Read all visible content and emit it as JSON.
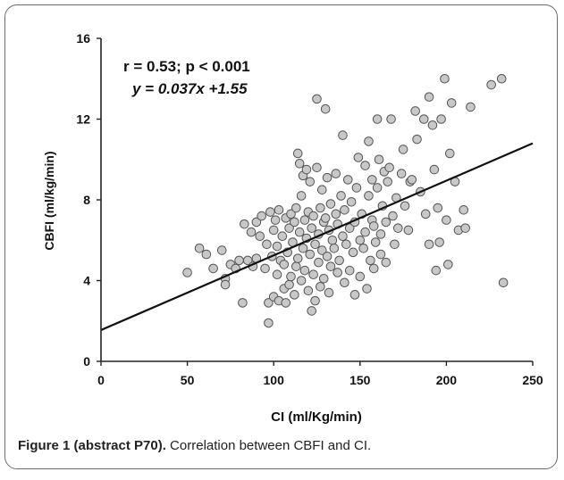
{
  "chart_data": {
    "type": "scatter",
    "title": "",
    "xlabel": "CI (ml/Kg/min)",
    "ylabel": "CBFI (ml/kg/min)",
    "xlim": [
      0,
      250
    ],
    "ylim": [
      0,
      16
    ],
    "xticks": [
      "0",
      "50",
      "100",
      "150",
      "200",
      "250"
    ],
    "yticks": [
      "0",
      "4",
      "8",
      "12",
      "16"
    ],
    "grid": false,
    "annotations": {
      "stats": "r = 0.53;  p < 0.001",
      "equation": "y = 0.037x +1.55"
    },
    "regression_line": {
      "slope": 0.037,
      "intercept": 1.55
    },
    "colors": {
      "point_fill": "#c8c8c8",
      "point_stroke": "#555555",
      "line": "#111111"
    },
    "points": [
      [
        50,
        4.4
      ],
      [
        57,
        5.6
      ],
      [
        61,
        5.3
      ],
      [
        65,
        4.6
      ],
      [
        70,
        5.5
      ],
      [
        72,
        4.1
      ],
      [
        72,
        3.8
      ],
      [
        75,
        4.8
      ],
      [
        78,
        4.6
      ],
      [
        80,
        5.0
      ],
      [
        82,
        2.9
      ],
      [
        83,
        6.8
      ],
      [
        85,
        5.0
      ],
      [
        87,
        6.4
      ],
      [
        88,
        4.7
      ],
      [
        90,
        5.1
      ],
      [
        90,
        6.9
      ],
      [
        92,
        6.2
      ],
      [
        93,
        7.2
      ],
      [
        95,
        4.6
      ],
      [
        96,
        5.8
      ],
      [
        97,
        2.9
      ],
      [
        97,
        1.9
      ],
      [
        98,
        7.4
      ],
      [
        99,
        5.2
      ],
      [
        100,
        3.2
      ],
      [
        100,
        6.5
      ],
      [
        101,
        7.0
      ],
      [
        102,
        4.3
      ],
      [
        102,
        5.7
      ],
      [
        103,
        3.0
      ],
      [
        103,
        7.5
      ],
      [
        104,
        5.0
      ],
      [
        105,
        6.2
      ],
      [
        106,
        3.6
      ],
      [
        106,
        4.8
      ],
      [
        107,
        2.9
      ],
      [
        107,
        7.1
      ],
      [
        108,
        5.4
      ],
      [
        109,
        3.8
      ],
      [
        109,
        6.6
      ],
      [
        110,
        4.2
      ],
      [
        110,
        7.3
      ],
      [
        111,
        5.9
      ],
      [
        112,
        3.3
      ],
      [
        112,
        6.9
      ],
      [
        113,
        4.7
      ],
      [
        113,
        7.6
      ],
      [
        114,
        5.1
      ],
      [
        114,
        10.3
      ],
      [
        115,
        9.8
      ],
      [
        115,
        6.4
      ],
      [
        116,
        4.0
      ],
      [
        116,
        8.2
      ],
      [
        117,
        9.2
      ],
      [
        117,
        5.6
      ],
      [
        118,
        7.0
      ],
      [
        118,
        4.5
      ],
      [
        119,
        6.1
      ],
      [
        119,
        9.5
      ],
      [
        120,
        3.5
      ],
      [
        120,
        7.4
      ],
      [
        121,
        5.3
      ],
      [
        121,
        8.9
      ],
      [
        122,
        2.5
      ],
      [
        122,
        6.6
      ],
      [
        123,
        4.3
      ],
      [
        123,
        7.2
      ],
      [
        124,
        3.0
      ],
      [
        124,
        5.8
      ],
      [
        125,
        13.0
      ],
      [
        125,
        9.6
      ],
      [
        126,
        6.3
      ],
      [
        126,
        4.9
      ],
      [
        127,
        7.6
      ],
      [
        127,
        3.7
      ],
      [
        128,
        5.5
      ],
      [
        128,
        8.5
      ],
      [
        129,
        6.9
      ],
      [
        129,
        4.1
      ],
      [
        130,
        12.5
      ],
      [
        130,
        7.1
      ],
      [
        131,
        5.2
      ],
      [
        131,
        9.1
      ],
      [
        132,
        6.5
      ],
      [
        132,
        3.4
      ],
      [
        133,
        7.8
      ],
      [
        133,
        4.7
      ],
      [
        134,
        6.0
      ],
      [
        135,
        5.6
      ],
      [
        136,
        9.3
      ],
      [
        136,
        7.3
      ],
      [
        137,
        4.4
      ],
      [
        137,
        6.8
      ],
      [
        138,
        5.0
      ],
      [
        139,
        8.2
      ],
      [
        140,
        11.2
      ],
      [
        140,
        6.2
      ],
      [
        141,
        3.9
      ],
      [
        141,
        7.5
      ],
      [
        142,
        5.8
      ],
      [
        143,
        9.0
      ],
      [
        144,
        6.6
      ],
      [
        144,
        4.5
      ],
      [
        145,
        7.9
      ],
      [
        146,
        5.4
      ],
      [
        147,
        6.9
      ],
      [
        147,
        3.3
      ],
      [
        148,
        8.6
      ],
      [
        149,
        10.1
      ],
      [
        150,
        6.0
      ],
      [
        150,
        4.2
      ],
      [
        151,
        7.3
      ],
      [
        152,
        5.6
      ],
      [
        153,
        9.7
      ],
      [
        153,
        6.4
      ],
      [
        154,
        3.6
      ],
      [
        155,
        8.2
      ],
      [
        155,
        10.9
      ],
      [
        156,
        5.0
      ],
      [
        157,
        7.0
      ],
      [
        157,
        9.0
      ],
      [
        158,
        4.6
      ],
      [
        158,
        6.7
      ],
      [
        159,
        5.9
      ],
      [
        160,
        8.6
      ],
      [
        160,
        12.0
      ],
      [
        161,
        10.0
      ],
      [
        162,
        5.3
      ],
      [
        162,
        6.3
      ],
      [
        163,
        7.7
      ],
      [
        164,
        9.4
      ],
      [
        165,
        4.9
      ],
      [
        165,
        6.9
      ],
      [
        166,
        8.9
      ],
      [
        167,
        9.6
      ],
      [
        168,
        12.0
      ],
      [
        169,
        7.2
      ],
      [
        170,
        5.8
      ],
      [
        171,
        8.1
      ],
      [
        172,
        6.6
      ],
      [
        174,
        9.3
      ],
      [
        175,
        10.5
      ],
      [
        176,
        7.7
      ],
      [
        178,
        6.5
      ],
      [
        179,
        8.9
      ],
      [
        180,
        9.0
      ],
      [
        182,
        12.4
      ],
      [
        183,
        11.0
      ],
      [
        185,
        8.4
      ],
      [
        187,
        12.0
      ],
      [
        188,
        7.3
      ],
      [
        190,
        13.1
      ],
      [
        190,
        5.8
      ],
      [
        192,
        11.7
      ],
      [
        193,
        9.5
      ],
      [
        194,
        4.5
      ],
      [
        195,
        7.6
      ],
      [
        196,
        5.9
      ],
      [
        197,
        12.0
      ],
      [
        199,
        14.0
      ],
      [
        200,
        7.0
      ],
      [
        201,
        4.8
      ],
      [
        202,
        10.3
      ],
      [
        203,
        12.8
      ],
      [
        205,
        8.9
      ],
      [
        207,
        6.5
      ],
      [
        210,
        7.5
      ],
      [
        211,
        6.6
      ],
      [
        214,
        12.6
      ],
      [
        226,
        13.7
      ],
      [
        232,
        14.0
      ],
      [
        233,
        3.9
      ]
    ]
  },
  "caption": {
    "label": "Figure 1 (abstract P70).",
    "text": " Correlation between CBFI and CI."
  }
}
